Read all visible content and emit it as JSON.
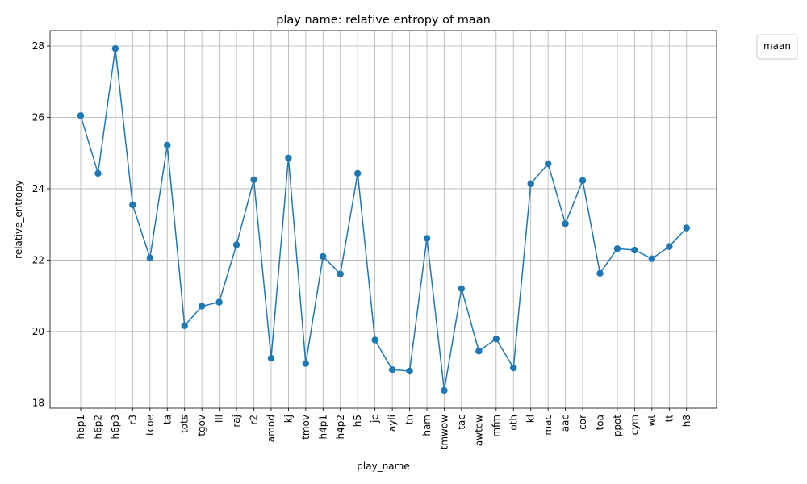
{
  "chart_data": {
    "type": "line",
    "title": "play name: relative entropy of maan",
    "xlabel": "play_name",
    "ylabel": "relative_entropy",
    "categories": [
      "h6p1",
      "h6p2",
      "h6p3",
      "r3",
      "tcoe",
      "ta",
      "tots",
      "tgov",
      "lll",
      "raj",
      "r2",
      "amnd",
      "kj",
      "tmov",
      "h4p1",
      "h4p2",
      "h5",
      "jc",
      "ayli",
      "tn",
      "ham",
      "tmwow",
      "tac",
      "awtew",
      "mfm",
      "oth",
      "kl",
      "mac",
      "aac",
      "cor",
      "toa",
      "ppot",
      "cym",
      "wt",
      "tt",
      "h8"
    ],
    "series": [
      {
        "values": [
          26.05,
          24.43,
          27.93,
          23.55,
          22.06,
          25.22,
          20.16,
          20.71,
          20.82,
          22.43,
          24.25,
          19.25,
          24.86,
          19.1,
          22.1,
          21.61,
          24.43,
          19.76,
          18.93,
          18.89,
          22.61,
          18.35,
          21.2,
          19.45,
          19.79,
          18.98,
          24.14,
          24.7,
          23.02,
          24.23,
          21.63,
          22.32,
          22.28,
          22.04,
          22.38,
          22.9
        ],
        "color": "#1f77b4"
      }
    ],
    "ylim": [
      17.85,
      28.43
    ],
    "yticks": [
      18,
      20,
      22,
      24,
      26,
      28
    ],
    "grid": true,
    "legend": {
      "title": "maan",
      "position": "outside-top-right"
    }
  }
}
